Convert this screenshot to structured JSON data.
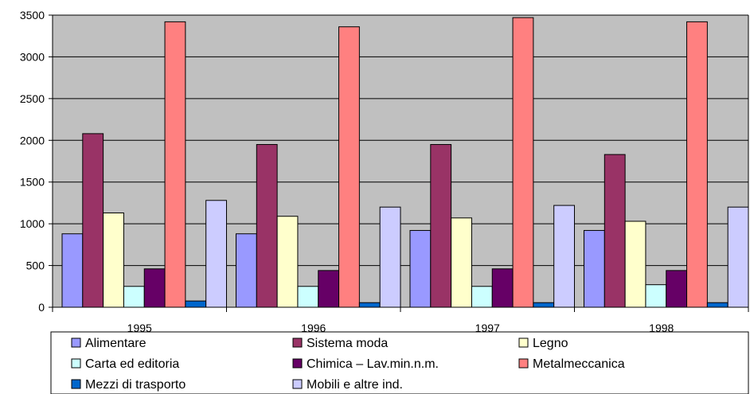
{
  "chart_data": {
    "type": "bar",
    "title": "",
    "xlabel": "",
    "ylabel": "",
    "ylim": [
      0,
      3500
    ],
    "yticks": [
      0,
      500,
      1000,
      1500,
      2000,
      2500,
      3000,
      3500
    ],
    "grid": true,
    "legend_position": "bottom",
    "categories": [
      "1995",
      "1996",
      "1997",
      "1998"
    ],
    "series": [
      {
        "name": "Alimentare",
        "color": "#9999ff",
        "values": [
          880,
          880,
          920,
          920
        ]
      },
      {
        "name": "Sistema moda",
        "color": "#993366",
        "values": [
          2080,
          1950,
          1950,
          1830
        ]
      },
      {
        "name": "Legno",
        "color": "#ffffcc",
        "values": [
          1130,
          1090,
          1070,
          1030
        ]
      },
      {
        "name": "Carta ed editoria",
        "color": "#ccffff",
        "values": [
          250,
          250,
          250,
          270
        ]
      },
      {
        "name": "Chimica – Lav.min.n.m.",
        "color": "#660066",
        "values": [
          460,
          440,
          460,
          440
        ]
      },
      {
        "name": "Metalmeccanica",
        "color": "#ff8080",
        "values": [
          3420,
          3360,
          3470,
          3420
        ]
      },
      {
        "name": "Mezzi di trasporto",
        "color": "#0066cc",
        "values": [
          75,
          55,
          55,
          55
        ]
      },
      {
        "name": "Mobili e altre ind.",
        "color": "#ccccff",
        "values": [
          1280,
          1200,
          1220,
          1200
        ]
      }
    ]
  },
  "colors": {
    "plot_background": "#c0c0c0",
    "gridline": "#000000",
    "bar_outline": "#000000"
  }
}
